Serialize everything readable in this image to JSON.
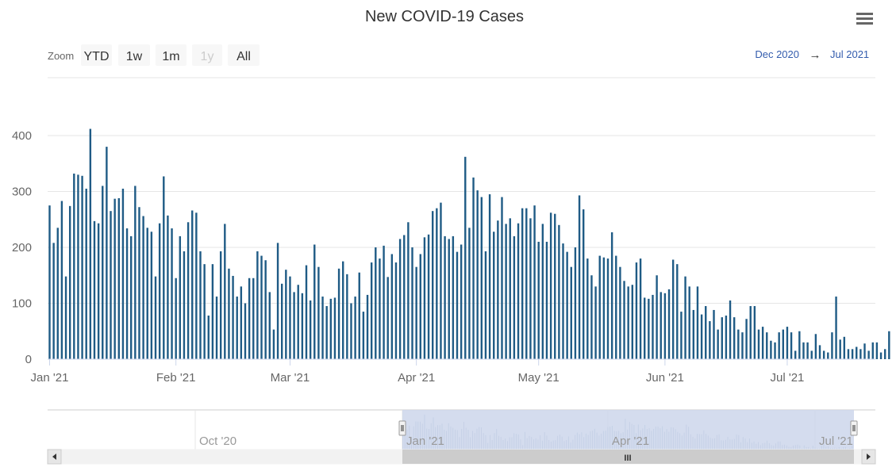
{
  "chart": {
    "title": "New COVID-19 Cases",
    "menu_icon": "hamburger-menu-icon",
    "colors": {
      "bar": "#1f5b85",
      "grid": "#e6e6e6",
      "navigator_mask": "#ccd6eb",
      "navigator_bar": "#99b1c9"
    }
  },
  "zoom": {
    "label": "Zoom",
    "buttons": [
      {
        "label": "YTD",
        "disabled": false
      },
      {
        "label": "1w",
        "disabled": false
      },
      {
        "label": "1m",
        "disabled": false
      },
      {
        "label": "1y",
        "disabled": true
      },
      {
        "label": "All",
        "disabled": false
      }
    ]
  },
  "range": {
    "from": "Dec 2020",
    "arrow": "→",
    "to": "Jul 2021"
  },
  "navigator": {
    "labels": [
      "Oct '20",
      "Jan '21",
      "Apr '21",
      "Jul '21"
    ],
    "grip": "III",
    "left_arrow": "◂",
    "right_arrow": "▸"
  },
  "chart_data": {
    "type": "bar",
    "title": "New COVID-19 Cases",
    "x_start": "2021-01-01",
    "x_ticks": [
      "Jan '21",
      "Feb '21",
      "Mar '21",
      "Apr '21",
      "May '21",
      "Jun '21",
      "Jul '21"
    ],
    "y_ticks": [
      0,
      100,
      200,
      300,
      400
    ],
    "ylim": [
      0,
      440
    ],
    "grid": true,
    "series": [
      {
        "values": [
          275,
          208,
          235,
          283,
          148,
          274,
          332,
          330,
          328,
          305,
          412,
          247,
          243,
          310,
          380,
          265,
          287,
          288,
          305,
          234,
          220,
          310,
          272,
          256,
          235,
          228,
          148,
          243,
          327,
          257,
          234,
          145,
          220,
          193,
          245,
          266,
          262,
          193,
          170,
          78,
          170,
          112,
          193,
          242,
          162,
          149,
          112,
          130,
          100,
          145,
          145,
          193,
          185,
          177,
          120,
          53,
          208,
          135,
          160,
          148,
          120,
          133,
          118,
          168,
          105,
          205,
          165,
          112,
          95,
          108,
          110,
          162,
          175,
          152,
          100,
          112,
          155,
          85,
          115,
          173,
          200,
          180,
          203,
          147,
          188,
          173,
          215,
          222,
          245,
          200,
          165,
          188,
          218,
          223,
          265,
          270,
          280,
          220,
          215,
          220,
          192,
          205,
          362,
          235,
          325,
          302,
          290,
          193,
          295,
          228,
          248,
          290,
          242,
          252,
          220,
          243,
          270,
          270,
          252,
          275,
          210,
          242,
          210,
          262,
          260,
          240,
          207,
          192,
          165,
          200,
          293,
          268,
          180,
          150,
          130,
          185,
          182,
          180,
          227,
          185,
          165,
          140,
          130,
          133,
          173,
          180,
          110,
          108,
          115,
          150,
          120,
          118,
          125,
          178,
          170,
          85,
          148,
          130,
          88,
          130,
          80,
          95,
          68,
          88,
          53,
          75,
          78,
          105,
          75,
          53,
          48,
          72,
          95,
          95,
          53,
          58,
          48,
          33,
          30,
          48,
          53,
          58,
          48,
          15,
          50,
          30,
          30,
          15,
          45,
          25,
          15,
          12,
          48,
          112,
          35,
          40,
          18,
          18,
          22,
          18,
          28,
          15,
          30,
          30,
          12,
          18,
          50
        ]
      }
    ]
  }
}
